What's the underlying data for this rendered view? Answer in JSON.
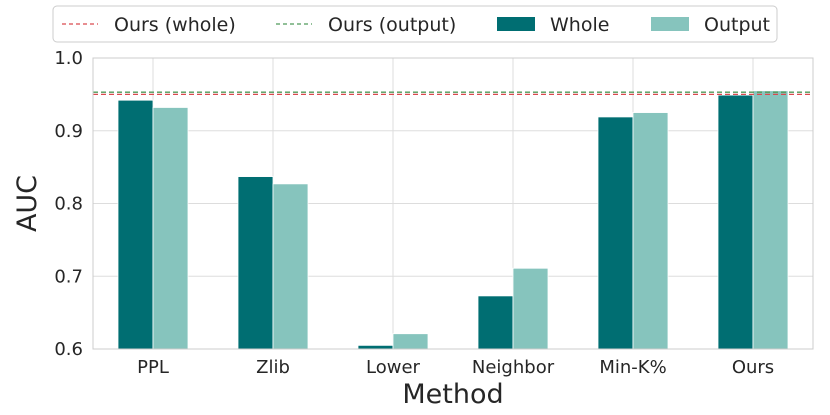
{
  "chart_data": {
    "type": "bar",
    "xlabel": "Method",
    "ylabel": "AUC",
    "categories": [
      "PPL",
      "Zlib",
      "Lower",
      "Neighbor",
      "Min-K%",
      "Ours"
    ],
    "series": [
      {
        "name": "Whole",
        "values": [
          0.942,
          0.837,
          0.605,
          0.673,
          0.919,
          0.949
        ],
        "color": "#006e72"
      },
      {
        "name": "Output",
        "values": [
          0.932,
          0.827,
          0.621,
          0.711,
          0.925,
          0.955
        ],
        "color": "#86c4bd"
      }
    ],
    "reference_lines": [
      {
        "name": "Ours (whole)",
        "value": 0.95,
        "color": "#d94a4f",
        "style": "dashed"
      },
      {
        "name": "Ours (output)",
        "value": 0.953,
        "color": "#4f9a5a",
        "style": "dashed"
      }
    ],
    "ylim": [
      0.6,
      1.0
    ],
    "yticks": [
      "0.6",
      "0.7",
      "0.8",
      "0.9",
      "1.0"
    ],
    "grid": true,
    "legend_position": "top"
  }
}
